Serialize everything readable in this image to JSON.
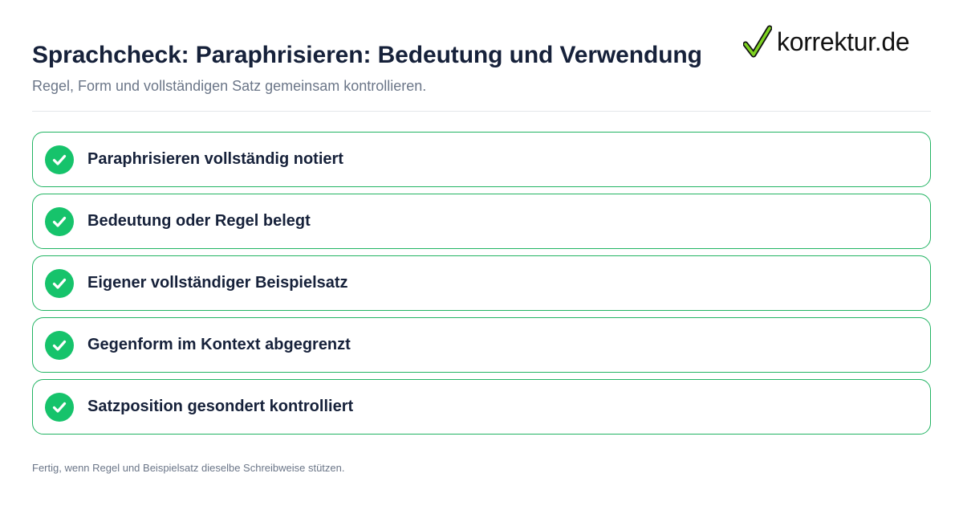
{
  "header": {
    "title": "Sprachcheck: Paraphrisieren: Bedeutung und Verwendung",
    "subtitle": "Regel, Form und vollständigen Satz gemeinsam kontrollieren."
  },
  "logo": {
    "text": "korrektur.de",
    "icon": "check-mark-icon",
    "check_color": "#7ed321"
  },
  "checklist": {
    "items": [
      {
        "label": "Paraphrisieren vollständig notiert"
      },
      {
        "label": "Bedeutung oder Regel belegt"
      },
      {
        "label": "Eigener vollständiger Beispielsatz"
      },
      {
        "label": "Gegenform im Kontext abgegrenzt"
      },
      {
        "label": "Satzposition gesondert kontrolliert"
      }
    ],
    "accent_color": "#16c36b",
    "border_color": "#22b463"
  },
  "footer": {
    "text": "Fertig, wenn Regel und Beispielsatz dieselbe Schreibweise stützen."
  }
}
